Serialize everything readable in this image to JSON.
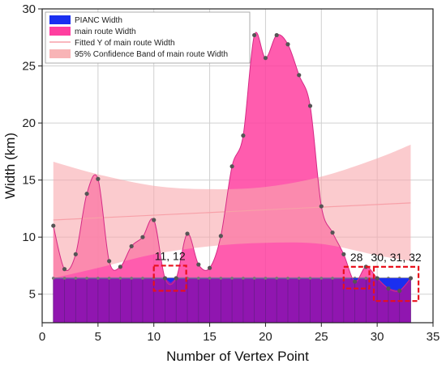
{
  "chart_data": {
    "type": "area",
    "xlabel": "Number of Vertex Point",
    "ylabel": "Width (km)",
    "xlim": [
      0,
      35
    ],
    "ylim": [
      2.5,
      30
    ],
    "xticks": [
      0,
      5,
      10,
      15,
      20,
      25,
      30,
      35
    ],
    "yticks": [
      5,
      10,
      15,
      20,
      25,
      30
    ],
    "grid": true,
    "legend_position": "top-left",
    "main_route": {
      "name": "main route Width",
      "color": "#ff3fa0",
      "x": [
        1,
        2,
        3,
        4,
        5,
        6,
        7,
        8,
        9,
        10,
        11,
        12,
        13,
        14,
        15,
        16,
        17,
        18,
        19,
        20,
        21,
        22,
        23,
        24,
        25,
        26,
        27,
        28,
        29,
        30,
        31,
        32,
        33
      ],
      "y": [
        11,
        7.2,
        8.5,
        13.8,
        15.1,
        7.9,
        7.4,
        9.2,
        10,
        11.5,
        6.4,
        6.4,
        10.3,
        7.6,
        7.3,
        10.1,
        16.2,
        18.9,
        27.7,
        25.7,
        27.7,
        26.9,
        24.2,
        21.5,
        12.7,
        10.4,
        8.5,
        6.1,
        7.4,
        6.4,
        5.5,
        5.3,
        6.4
      ]
    },
    "pianc": {
      "name": "PIANC Width",
      "color": "#1a2ff0",
      "value": 6.4,
      "dips": [
        {
          "x": 11.5,
          "y": 6.0
        },
        {
          "x": 28,
          "y": 6.1
        },
        {
          "x": 31,
          "y": 5.5
        },
        {
          "x": 32,
          "y": 5.3
        }
      ]
    },
    "fitted": {
      "name": "Fitted Y of main route Width",
      "x": [
        1,
        33
      ],
      "y": [
        11.5,
        13.0
      ]
    },
    "band": {
      "name": "95% Confidence Band of main route Width",
      "x": [
        1,
        5,
        10,
        15,
        20,
        25,
        30,
        33
      ],
      "upper": [
        16.6,
        15.5,
        14.5,
        14.2,
        14.4,
        15.3,
        16.9,
        18.1
      ],
      "lower": [
        6.4,
        7.3,
        8.5,
        9.2,
        9.5,
        9.4,
        8.4,
        7.9
      ]
    },
    "annotations": [
      {
        "text": "11, 12",
        "x0": 10,
        "x1": 12.9,
        "y0": 5.3,
        "y1": 7.5
      },
      {
        "text": "28",
        "x0": 27,
        "x1": 29.3,
        "y0": 5.5,
        "y1": 7.4
      },
      {
        "text": "30, 31, 32",
        "x0": 29.7,
        "x1": 33.7,
        "y0": 4.4,
        "y1": 7.4
      }
    ]
  }
}
